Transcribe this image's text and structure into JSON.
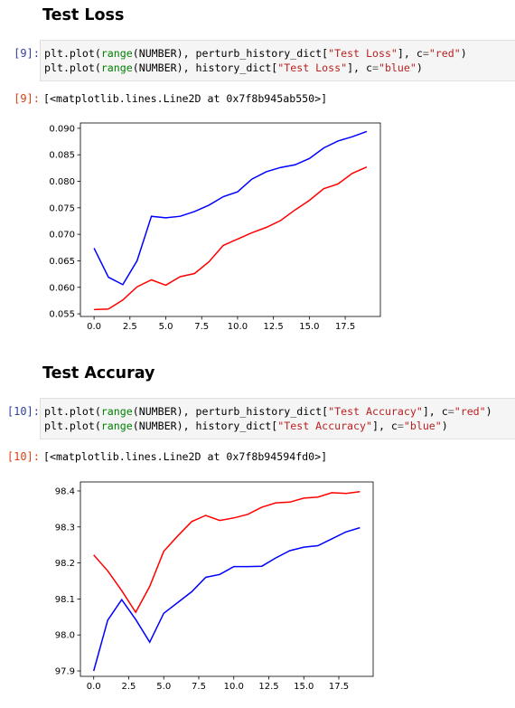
{
  "cells": [
    {
      "heading": "Test Loss",
      "in_prompt": "[9]:",
      "code": [
        [
          {
            "t": "plt.plot(",
            "c": ""
          },
          {
            "t": "range",
            "c": "fn"
          },
          {
            "t": "(NUMBER), perturb_history_dict[",
            "c": ""
          },
          {
            "t": "\"Test Loss\"",
            "c": "str"
          },
          {
            "t": "], c",
            "c": ""
          },
          {
            "t": "=",
            "c": "op"
          },
          {
            "t": "\"red\"",
            "c": "str"
          },
          {
            "t": ")",
            "c": ""
          }
        ],
        [
          {
            "t": "plt.plot(",
            "c": ""
          },
          {
            "t": "range",
            "c": "fn"
          },
          {
            "t": "(NUMBER), history_dict[",
            "c": ""
          },
          {
            "t": "\"Test Loss\"",
            "c": "str"
          },
          {
            "t": "], c",
            "c": ""
          },
          {
            "t": "=",
            "c": "op"
          },
          {
            "t": "\"blue\"",
            "c": "str"
          },
          {
            "t": ")",
            "c": ""
          }
        ]
      ],
      "out_prompt": "[9]:",
      "output_text": "[<matplotlib.lines.Line2D at 0x7f8b945ab550>]"
    },
    {
      "heading": "Test Accuray",
      "in_prompt": "[10]:",
      "code": [
        [
          {
            "t": "plt.plot(",
            "c": ""
          },
          {
            "t": "range",
            "c": "fn"
          },
          {
            "t": "(NUMBER), perturb_history_dict[",
            "c": ""
          },
          {
            "t": "\"Test Accuracy\"",
            "c": "str"
          },
          {
            "t": "], c",
            "c": ""
          },
          {
            "t": "=",
            "c": "op"
          },
          {
            "t": "\"red\"",
            "c": "str"
          },
          {
            "t": ")",
            "c": ""
          }
        ],
        [
          {
            "t": "plt.plot(",
            "c": ""
          },
          {
            "t": "range",
            "c": "fn"
          },
          {
            "t": "(NUMBER), history_dict[",
            "c": ""
          },
          {
            "t": "\"Test Accuracy\"",
            "c": "str"
          },
          {
            "t": "], c",
            "c": ""
          },
          {
            "t": "=",
            "c": "op"
          },
          {
            "t": "\"blue\"",
            "c": "str"
          },
          {
            "t": ")",
            "c": ""
          }
        ]
      ],
      "out_prompt": "[10]:",
      "output_text": "[<matplotlib.lines.Line2D at 0x7f8b94594fd0>]"
    }
  ],
  "chart_data": [
    {
      "type": "line",
      "x": [
        0,
        1,
        2,
        3,
        4,
        5,
        6,
        7,
        8,
        9,
        10,
        11,
        12,
        13,
        14,
        15,
        16,
        17,
        18,
        19
      ],
      "xlim": [
        -0.95,
        19.95
      ],
      "ylim": [
        0.0545,
        0.091
      ],
      "xticks": [
        "0.0",
        "2.5",
        "5.0",
        "7.5",
        "10.0",
        "12.5",
        "15.0",
        "17.5"
      ],
      "xtick_values": [
        0,
        2.5,
        5,
        7.5,
        10,
        12.5,
        15,
        17.5
      ],
      "yticks": [
        "0.055",
        "0.060",
        "0.065",
        "0.070",
        "0.075",
        "0.080",
        "0.085",
        "0.090"
      ],
      "ytick_values": [
        0.055,
        0.06,
        0.065,
        0.07,
        0.075,
        0.08,
        0.085,
        0.09
      ],
      "grid": false,
      "series": [
        {
          "color": "#ff0000",
          "values": [
            0.0558,
            0.0559,
            0.0576,
            0.0601,
            0.0614,
            0.0604,
            0.062,
            0.0626,
            0.0648,
            0.0679,
            0.0691,
            0.0703,
            0.0713,
            0.0726,
            0.0746,
            0.0764,
            0.0786,
            0.0795,
            0.0815,
            0.0827
          ]
        },
        {
          "color": "#0000ff",
          "values": [
            0.0674,
            0.0619,
            0.0605,
            0.065,
            0.0734,
            0.0731,
            0.0734,
            0.0743,
            0.0755,
            0.0771,
            0.078,
            0.0804,
            0.0818,
            0.0826,
            0.0831,
            0.0843,
            0.0863,
            0.0876,
            0.0884,
            0.0894
          ]
        }
      ]
    },
    {
      "type": "line",
      "x": [
        0,
        1,
        2,
        3,
        4,
        5,
        6,
        7,
        8,
        9,
        10,
        11,
        12,
        13,
        14,
        15,
        16,
        17,
        18,
        19
      ],
      "xlim": [
        -0.95,
        19.95
      ],
      "ylim": [
        97.885,
        98.425
      ],
      "xticks": [
        "0.0",
        "2.5",
        "5.0",
        "7.5",
        "10.0",
        "12.5",
        "15.0",
        "17.5"
      ],
      "xtick_values": [
        0,
        2.5,
        5,
        7.5,
        10,
        12.5,
        15,
        17.5
      ],
      "yticks": [
        "97.9",
        "98.0",
        "98.1",
        "98.2",
        "98.3",
        "98.4"
      ],
      "ytick_values": [
        97.9,
        98.0,
        98.1,
        98.2,
        98.3,
        98.4
      ],
      "grid": false,
      "series": [
        {
          "color": "#ff0000",
          "values": [
            98.222,
            98.178,
            98.123,
            98.063,
            98.135,
            98.232,
            98.275,
            98.315,
            98.332,
            98.318,
            98.325,
            98.335,
            98.355,
            98.367,
            98.369,
            98.38,
            98.383,
            98.395,
            98.393,
            98.398
          ]
        },
        {
          "color": "#0000ff",
          "values": [
            97.9,
            98.041,
            98.098,
            98.043,
            97.98,
            98.06,
            98.09,
            98.12,
            98.16,
            98.168,
            98.19,
            98.19,
            98.191,
            98.214,
            98.234,
            98.244,
            98.248,
            98.267,
            98.286,
            98.298
          ]
        }
      ]
    }
  ]
}
